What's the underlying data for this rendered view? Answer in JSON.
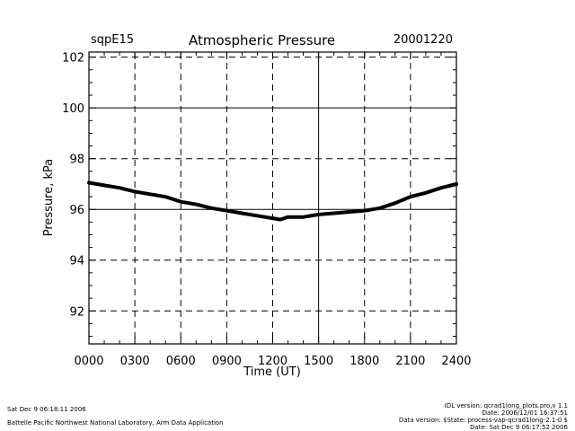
{
  "header": {
    "station": "sqpE15",
    "title": "Atmospheric Pressure",
    "date": "20001220"
  },
  "footer": {
    "left_line1": "Sat Dec  9 06:18:11 2006",
    "left_line2": "Battelle Pacific Northwest National Laboratory, Arm Data Application",
    "right_lines": [
      "IDL version: qcrad1long_plots.pro,v 1.1",
      "Date: 2006/12/01 16:37:51",
      "Data version: $State: process-vap-qcrad1long-2.1-0 $",
      "Date: Sat Dec  9 06:17:52 2006"
    ]
  },
  "chart_data": {
    "type": "line",
    "title": "Atmospheric Pressure",
    "xlabel": "Time (UT)",
    "ylabel": "Pressure, kPa",
    "x_ticks": [
      "0000",
      "0300",
      "0600",
      "0900",
      "1200",
      "1500",
      "1800",
      "2100",
      "2400"
    ],
    "y_ticks": [
      "92",
      "94",
      "96",
      "98",
      "100",
      "102"
    ],
    "xlim": [
      0,
      24
    ],
    "ylim": [
      90.7,
      102.2
    ],
    "grid": true,
    "series": [
      {
        "color": "#000000",
        "x": [
          0,
          1,
          2,
          3,
          4,
          5,
          6,
          7,
          8,
          9,
          10,
          11,
          12,
          12.5,
          13,
          14,
          15,
          16,
          17,
          18,
          19,
          20,
          21,
          22,
          23,
          24
        ],
        "y": [
          97.05,
          96.95,
          96.85,
          96.7,
          96.6,
          96.5,
          96.3,
          96.2,
          96.05,
          95.95,
          95.85,
          95.75,
          95.65,
          95.6,
          95.7,
          95.7,
          95.8,
          95.85,
          95.9,
          95.95,
          96.05,
          96.25,
          96.5,
          96.65,
          96.85,
          97.0
        ]
      }
    ]
  }
}
